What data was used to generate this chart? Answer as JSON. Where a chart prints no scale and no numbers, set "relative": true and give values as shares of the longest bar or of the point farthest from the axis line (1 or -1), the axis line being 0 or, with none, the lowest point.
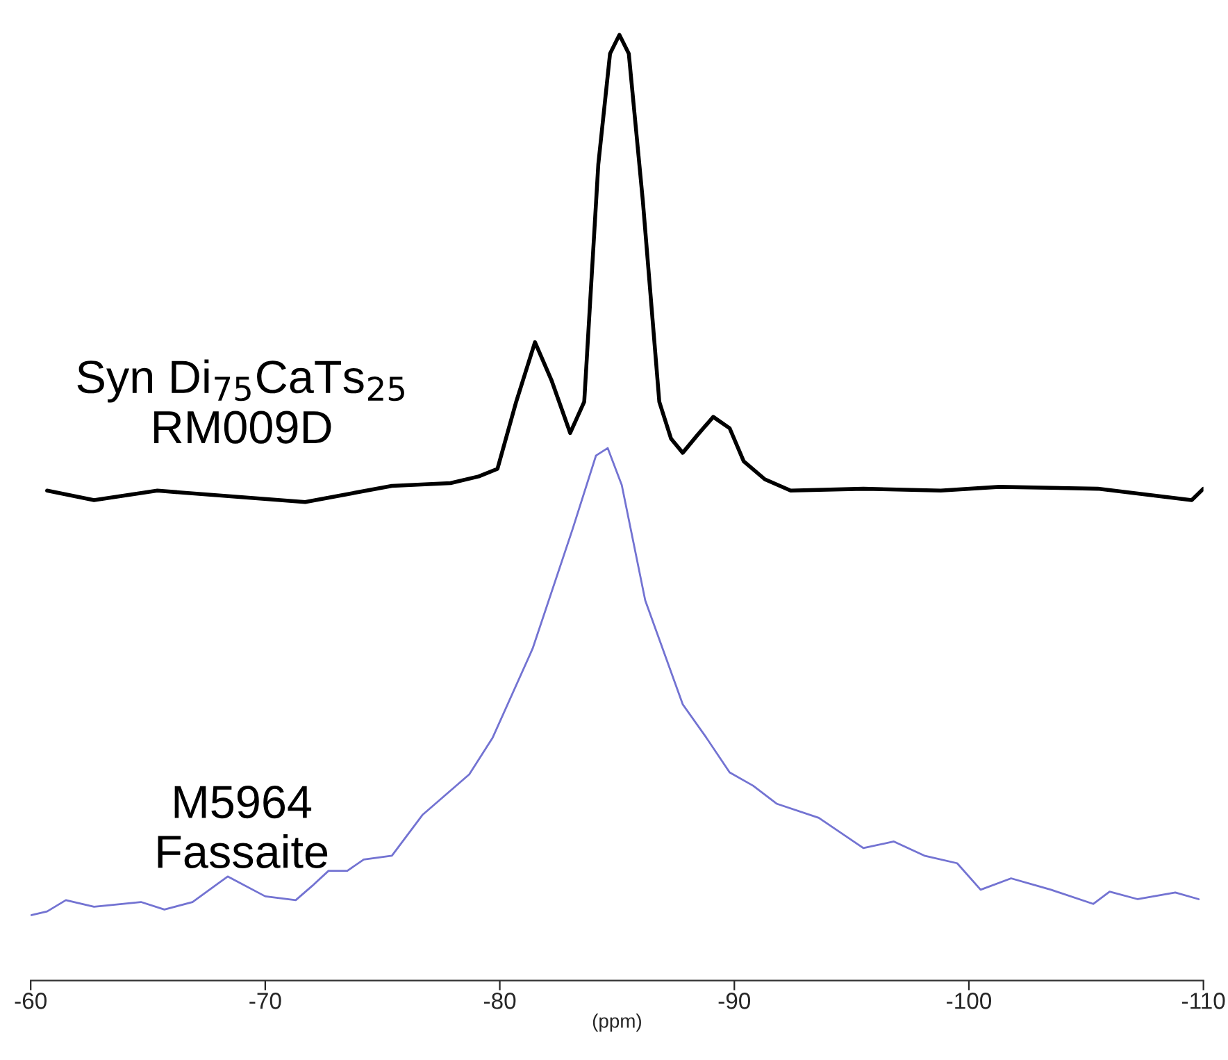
{
  "chart_data": {
    "type": "line",
    "relative": true,
    "xlabel": "(ppm)",
    "xlim": [
      -60,
      -110
    ],
    "xticks": [
      -60,
      -70,
      -80,
      -90,
      -100,
      -110
    ],
    "grid": false,
    "legend": false,
    "marker": "none",
    "line_style": "solid",
    "series": [
      {
        "name": "Syn Di$_{75}$CaTs$_{25}$\nRM009D",
        "color": "#000000",
        "x": [
          -60.7,
          -62.7,
          -65.4,
          -71.7,
          -75.4,
          -77.9,
          -79.1,
          -79.9,
          -80.7,
          -81.5,
          -82.2,
          -83.0,
          -83.6,
          -84.2,
          -84.7,
          -85.1,
          -85.5,
          -86.1,
          -86.8,
          -87.3,
          -87.8,
          -88.4,
          -89.1,
          -89.8,
          -90.4,
          -91.3,
          -92.4,
          -95.5,
          -98.8,
          -101.3,
          -105.5,
          -109.5,
          -110.0
        ],
        "values": [
          0.518,
          0.508,
          0.518,
          0.506,
          0.523,
          0.526,
          0.533,
          0.541,
          0.612,
          0.675,
          0.635,
          0.579,
          0.612,
          0.863,
          0.98,
          1.0,
          0.98,
          0.824,
          0.612,
          0.573,
          0.558,
          0.576,
          0.596,
          0.584,
          0.549,
          0.53,
          0.518,
          0.52,
          0.518,
          0.522,
          0.52,
          0.508,
          0.52
        ]
      },
      {
        "name": "M5964\nFassaite",
        "color": "#7373d2",
        "x": [
          -60.0,
          -60.7,
          -61.5,
          -62.7,
          -64.7,
          -65.7,
          -66.9,
          -68.4,
          -70.0,
          -71.3,
          -72.0,
          -72.7,
          -73.5,
          -74.2,
          -75.4,
          -76.7,
          -78.7,
          -79.7,
          -81.4,
          -83.1,
          -84.1,
          -84.6,
          -85.2,
          -86.2,
          -87.8,
          -88.8,
          -89.8,
          -90.8,
          -91.8,
          -93.6,
          -95.5,
          -96.8,
          -98.1,
          -99.5,
          -100.5,
          -101.8,
          -103.5,
          -105.3,
          -106.0,
          -107.2,
          -108.8,
          -109.8
        ],
        "values": [
          0.069,
          0.073,
          0.085,
          0.078,
          0.083,
          0.075,
          0.083,
          0.11,
          0.089,
          0.085,
          0.1,
          0.116,
          0.116,
          0.128,
          0.132,
          0.175,
          0.218,
          0.257,
          0.351,
          0.477,
          0.555,
          0.563,
          0.524,
          0.402,
          0.292,
          0.257,
          0.22,
          0.206,
          0.187,
          0.172,
          0.14,
          0.147,
          0.132,
          0.124,
          0.096,
          0.108,
          0.096,
          0.081,
          0.094,
          0.086,
          0.093,
          0.086
        ]
      }
    ]
  }
}
